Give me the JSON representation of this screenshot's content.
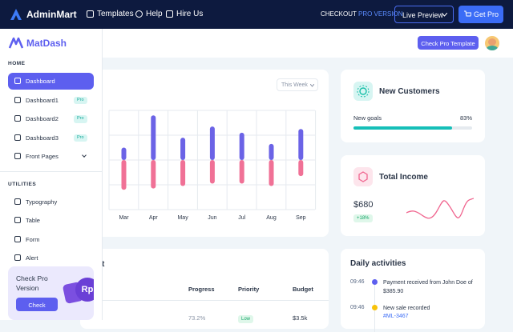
{
  "topbar": {
    "brand": "AdminMart",
    "links": [
      "Templates",
      "Help",
      "Hire Us"
    ],
    "checkout": "CHECKOUT",
    "checkout_pro": "PRO VERSION",
    "live_preview": "Live Preview",
    "get_pro": "Get Pro"
  },
  "sidebar": {
    "brand": "MatDash",
    "sections": [
      {
        "title": "HOME",
        "items": [
          {
            "label": "Dashboard"
          },
          {
            "label": "Dashboard1",
            "badge": "Pro"
          },
          {
            "label": "Dashboard2",
            "badge": "Pro"
          },
          {
            "label": "Dashboard3",
            "badge": "Pro"
          },
          {
            "label": "Front Pages"
          }
        ]
      },
      {
        "title": "UTILITIES",
        "items": [
          {
            "label": "Typography"
          },
          {
            "label": "Table"
          },
          {
            "label": "Form"
          },
          {
            "label": "Alert"
          }
        ]
      }
    ],
    "promo": {
      "title": "Check Pro Version",
      "button": "Check",
      "avatar": "Rp"
    }
  },
  "header": {
    "button": "Check Pro Template"
  },
  "revenue": {
    "filter": "This Week",
    "months": [
      "Mar",
      "Apr",
      "May",
      "Jun",
      "Jul",
      "Aug",
      "Sep"
    ],
    "income": [
      0.5,
      1.8,
      0.9,
      1.35,
      1.1,
      0.65,
      1.25
    ],
    "expense": [
      -1.2,
      -1.15,
      -1.05,
      -0.95,
      -0.95,
      -1.05,
      -0.65
    ],
    "ylim": [
      -2,
      2
    ],
    "income_color": "#6b63e6",
    "expense_color": "#f07196"
  },
  "customers": {
    "title": "New Customers",
    "goal_label": "New goals",
    "goal": {
      "value": 83,
      "label": "83%"
    }
  },
  "income": {
    "title": "Total Income",
    "amount": "$680",
    "change": "+18%"
  },
  "projects": {
    "title": "t",
    "columns": [
      "Progress",
      "Priority",
      "Budget"
    ],
    "rows": [
      [
        "73.2%",
        "Low",
        "$3.5k"
      ]
    ]
  },
  "activities": {
    "title": "Daily activities",
    "items": [
      {
        "time": "09:46",
        "text": "Payment received from John Doe of $385.90",
        "color": "#5d5fef"
      },
      {
        "time": "09:46",
        "text": "New sale recorded",
        "ref": "#ML-3467",
        "color": "#f8c20a"
      }
    ]
  }
}
